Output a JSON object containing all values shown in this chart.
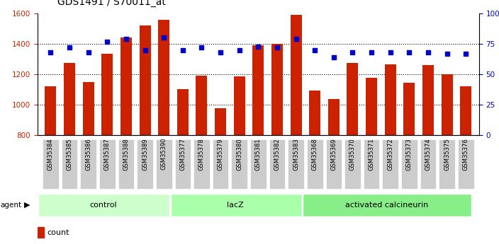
{
  "title": "GDS1491 / S70011_at",
  "samples": [
    "GSM35384",
    "GSM35385",
    "GSM35386",
    "GSM35387",
    "GSM35388",
    "GSM35389",
    "GSM35390",
    "GSM35377",
    "GSM35378",
    "GSM35379",
    "GSM35380",
    "GSM35381",
    "GSM35382",
    "GSM35383",
    "GSM35368",
    "GSM35369",
    "GSM35370",
    "GSM35371",
    "GSM35372",
    "GSM35373",
    "GSM35374",
    "GSM35375",
    "GSM35376"
  ],
  "counts": [
    1120,
    1275,
    1150,
    1335,
    1440,
    1520,
    1560,
    1105,
    1190,
    980,
    1185,
    1390,
    1400,
    1590,
    1095,
    1040,
    1275,
    1180,
    1265,
    1145,
    1260,
    1200,
    1120
  ],
  "percentiles": [
    68,
    72,
    68,
    77,
    79,
    70,
    80,
    70,
    72,
    68,
    70,
    73,
    72,
    79,
    70,
    64,
    68,
    68,
    68,
    68,
    68,
    67,
    67
  ],
  "groups": [
    {
      "label": "control",
      "start": 0,
      "end": 7,
      "color": "#ccffcc"
    },
    {
      "label": "lacZ",
      "start": 7,
      "end": 14,
      "color": "#aaffaa"
    },
    {
      "label": "activated calcineurin",
      "start": 14,
      "end": 23,
      "color": "#88ee88"
    }
  ],
  "bar_color": "#cc2200",
  "dot_color": "#0000cc",
  "ylim_left": [
    800,
    1600
  ],
  "ylim_right": [
    0,
    100
  ],
  "yticks_left": [
    800,
    1000,
    1200,
    1400,
    1600
  ],
  "yticks_right": [
    0,
    25,
    50,
    75,
    100
  ],
  "ylabel_right_labels": [
    "0",
    "25",
    "50",
    "75",
    "100%"
  ],
  "grid_values": [
    1000,
    1200,
    1400
  ],
  "background_color": "#ffffff",
  "tick_label_bg": "#cccccc"
}
